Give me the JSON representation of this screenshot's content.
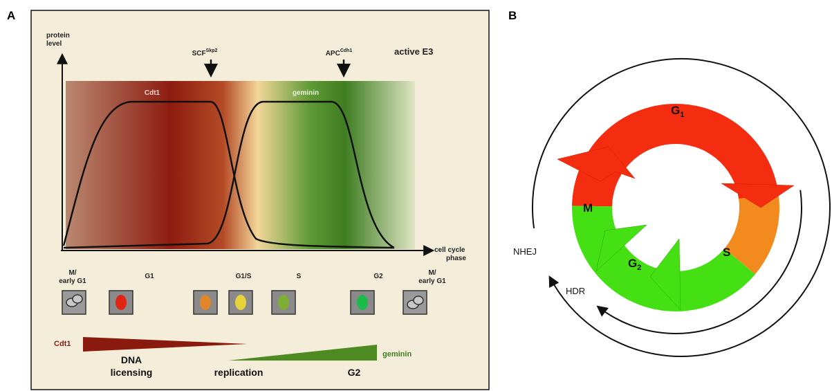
{
  "panel_a": {
    "label": "A",
    "y_axis_label": [
      "protein",
      "level"
    ],
    "x_axis_label": [
      "cell cycle",
      "phase"
    ],
    "e3_markers": [
      {
        "name": "SCF",
        "sup": "Skp2"
      },
      {
        "name": "APC",
        "sup": "Cdh1"
      }
    ],
    "active_e3": "active E3",
    "curves": [
      "Cdt1",
      "geminin"
    ],
    "phases": [
      [
        "M/",
        "early G1"
      ],
      [
        "G1"
      ],
      [
        "G1/S"
      ],
      [
        "S"
      ],
      [
        "G2"
      ],
      [
        "M/",
        "early G1"
      ]
    ],
    "gradient_left": "Cdt1",
    "gradient_right": "geminin",
    "stages": [
      [
        "DNA",
        "licensing"
      ],
      [
        "replication"
      ],
      [
        "G2"
      ]
    ]
  },
  "panel_b": {
    "label": "B",
    "phases": [
      {
        "name": "G",
        "sub": "1"
      },
      {
        "name": "M"
      },
      {
        "name": "S"
      },
      {
        "name": "G",
        "sub": "2"
      }
    ],
    "repair": [
      "NHEJ",
      "HDR"
    ]
  }
}
